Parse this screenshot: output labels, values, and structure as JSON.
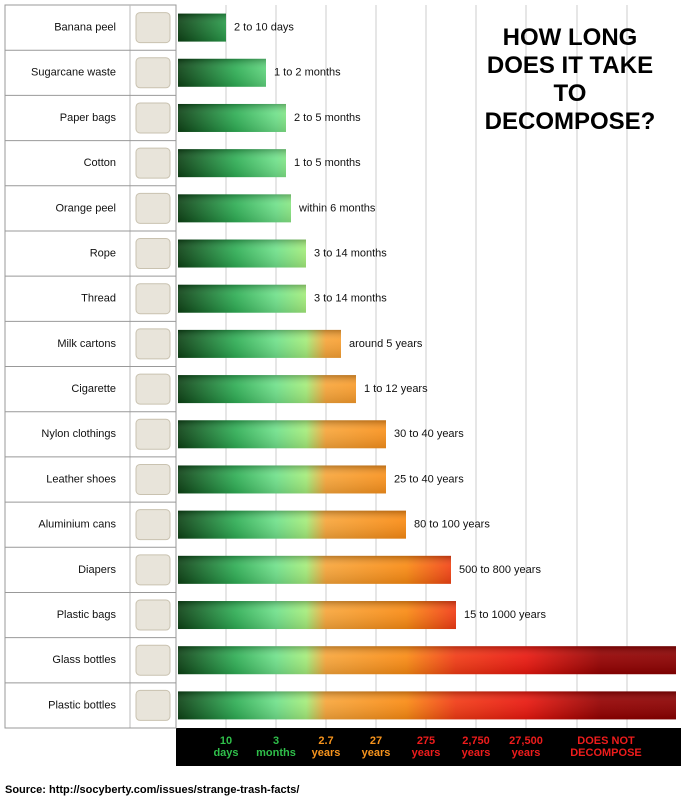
{
  "chart_data": {
    "type": "bar",
    "orientation": "horizontal",
    "title": "HOW LONG DOES IT TAKE TO DECOMPOSE?",
    "categories": [
      "Banana peel",
      "Sugarcane waste",
      "Paper bags",
      "Cotton",
      "Orange peel",
      "Rope",
      "Thread",
      "Milk cartons",
      "Cigarette",
      "Nylon clothings",
      "Leather shoes",
      "Aluminium cans",
      "Diapers",
      "Plastic bags",
      "Glass bottles",
      "Plastic bottles"
    ],
    "values": [
      1.0,
      1.8,
      2.2,
      2.2,
      2.3,
      2.6,
      2.6,
      3.3,
      3.6,
      4.2,
      4.2,
      4.6,
      5.5,
      5.6,
      10,
      10
    ],
    "durations": [
      "2 to 10 days",
      "1 to 2 months",
      "2 to 5 months",
      "1 to 5 months",
      "within 6 months",
      "3 to 14 months",
      "3 to 14 months",
      "around 5 years",
      "1 to 12 years",
      "30 to 40 years",
      "25 to 40 years",
      "80 to 100 years",
      "500 to 800 years",
      "15 to 1000 years",
      null,
      null
    ],
    "xlim": [
      0,
      10
    ],
    "xticks": [
      {
        "value": 1,
        "label": "10 days"
      },
      {
        "value": 2,
        "label": "3 months"
      },
      {
        "value": 3,
        "label": "2.7 years"
      },
      {
        "value": 4,
        "label": "27 years"
      },
      {
        "value": 5,
        "label": "275 years"
      },
      {
        "value": 6,
        "label": "2,750 years"
      },
      {
        "value": 7,
        "label": "27,500 years"
      },
      {
        "value": 8.6,
        "label": "DOES NOT DECOMPOSE"
      }
    ],
    "grid": true,
    "source": "Source: http://socyberty.com/issues/strange-trash-facts/"
  }
}
